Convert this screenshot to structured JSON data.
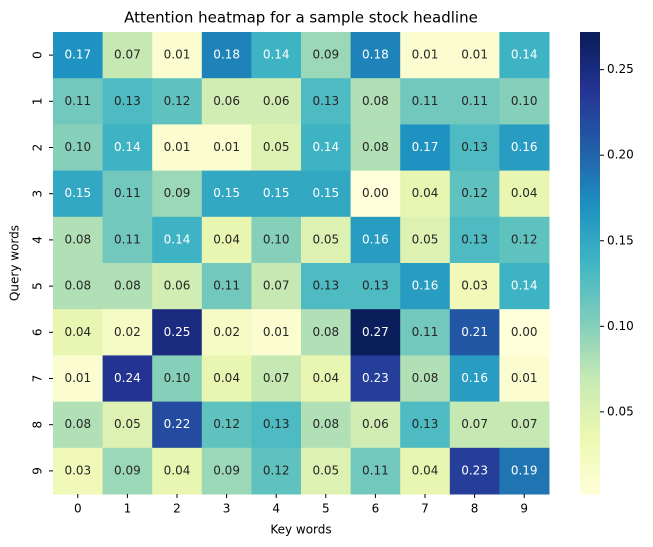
{
  "chart_data": {
    "type": "heatmap",
    "title": "Attention heatmap for a sample stock headline",
    "x_label": "Key words",
    "y_label": "Query words",
    "x_categories": [
      "0",
      "1",
      "2",
      "3",
      "4",
      "5",
      "6",
      "7",
      "8",
      "9"
    ],
    "y_categories": [
      "0",
      "1",
      "2",
      "3",
      "4",
      "5",
      "6",
      "7",
      "8",
      "9"
    ],
    "values": [
      [
        0.17,
        0.07,
        0.01,
        0.18,
        0.14,
        0.09,
        0.18,
        0.01,
        0.01,
        0.14
      ],
      [
        0.11,
        0.13,
        0.12,
        0.06,
        0.06,
        0.13,
        0.08,
        0.11,
        0.11,
        0.1
      ],
      [
        0.1,
        0.14,
        0.01,
        0.01,
        0.05,
        0.14,
        0.08,
        0.17,
        0.13,
        0.16
      ],
      [
        0.15,
        0.11,
        0.09,
        0.15,
        0.15,
        0.15,
        0.0,
        0.04,
        0.12,
        0.04
      ],
      [
        0.08,
        0.11,
        0.14,
        0.04,
        0.1,
        0.05,
        0.16,
        0.05,
        0.13,
        0.12
      ],
      [
        0.08,
        0.08,
        0.06,
        0.11,
        0.07,
        0.13,
        0.13,
        0.16,
        0.03,
        0.14
      ],
      [
        0.04,
        0.02,
        0.25,
        0.02,
        0.01,
        0.08,
        0.27,
        0.11,
        0.21,
        0.0
      ],
      [
        0.01,
        0.24,
        0.1,
        0.04,
        0.07,
        0.04,
        0.23,
        0.08,
        0.16,
        0.01
      ],
      [
        0.08,
        0.05,
        0.22,
        0.12,
        0.13,
        0.08,
        0.06,
        0.13,
        0.07,
        0.07
      ],
      [
        0.03,
        0.09,
        0.04,
        0.09,
        0.12,
        0.05,
        0.11,
        0.04,
        0.23,
        0.19
      ]
    ],
    "value_labels": [
      [
        "0.17",
        "0.07",
        "0.01",
        "0.18",
        "0.14",
        "0.09",
        "0.18",
        "0.01",
        "0.01",
        "0.14"
      ],
      [
        "0.11",
        "0.13",
        "0.12",
        "0.06",
        "0.06",
        "0.13",
        "0.08",
        "0.11",
        "0.11",
        "0.10"
      ],
      [
        "0.10",
        "0.14",
        "0.01",
        "0.01",
        "0.05",
        "0.14",
        "0.08",
        "0.17",
        "0.13",
        "0.16"
      ],
      [
        "0.15",
        "0.11",
        "0.09",
        "0.15",
        "0.15",
        "0.15",
        "0.00",
        "0.04",
        "0.12",
        "0.04"
      ],
      [
        "0.08",
        "0.11",
        "0.14",
        "0.04",
        "0.10",
        "0.05",
        "0.16",
        "0.05",
        "0.13",
        "0.12"
      ],
      [
        "0.08",
        "0.08",
        "0.06",
        "0.11",
        "0.07",
        "0.13",
        "0.13",
        "0.16",
        "0.03",
        "0.14"
      ],
      [
        "0.04",
        "0.02",
        "0.25",
        "0.02",
        "0.01",
        "0.08",
        "0.27",
        "0.11",
        "0.21",
        "0.00"
      ],
      [
        "0.01",
        "0.24",
        "0.10",
        "0.04",
        "0.07",
        "0.04",
        "0.23",
        "0.08",
        "0.16",
        "0.01"
      ],
      [
        "0.08",
        "0.05",
        "0.22",
        "0.12",
        "0.13",
        "0.08",
        "0.06",
        "0.13",
        "0.07",
        "0.07"
      ],
      [
        "0.03",
        "0.09",
        "0.04",
        "0.09",
        "0.12",
        "0.05",
        "0.11",
        "0.04",
        "0.23",
        "0.19"
      ]
    ],
    "colormap": "YlGnBu",
    "zlim": [
      0.002,
      0.272
    ],
    "zticks": [
      0.05,
      {
        "value": 0.1,
        "label": "0.10"
      },
      0.15,
      {
        "value": 0.2,
        "label": "0.20"
      },
      0.25
    ]
  }
}
